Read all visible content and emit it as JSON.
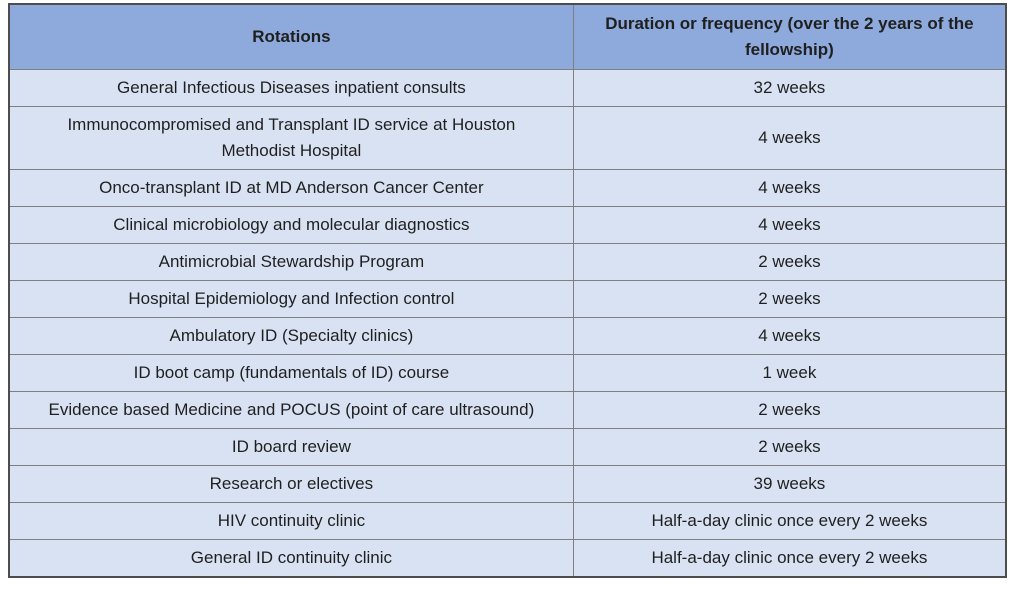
{
  "colors": {
    "header_bg": "#8EAADC",
    "row_bg": "#D9E2F3",
    "border_inner": "#7F7F7F",
    "border_outer": "#4D4D4D",
    "text": "#1F1F1F"
  },
  "table": {
    "columns": [
      {
        "label": "Rotations"
      },
      {
        "label": "Duration or frequency (over the 2 years of the fellowship)"
      }
    ],
    "rows": [
      {
        "rotation": "General Infectious Diseases inpatient consults",
        "duration": "32 weeks"
      },
      {
        "rotation": "Immunocompromised and Transplant ID service at Houston Methodist Hospital",
        "duration": "4 weeks"
      },
      {
        "rotation": "Onco-transplant ID at MD Anderson Cancer Center",
        "duration": "4 weeks"
      },
      {
        "rotation": "Clinical microbiology and molecular diagnostics",
        "duration": "4 weeks"
      },
      {
        "rotation": "Antimicrobial Stewardship Program",
        "duration": "2 weeks"
      },
      {
        "rotation": "Hospital Epidemiology and Infection control",
        "duration": "2 weeks"
      },
      {
        "rotation": "Ambulatory ID (Specialty clinics)",
        "duration": "4 weeks"
      },
      {
        "rotation": "ID boot camp (fundamentals of ID) course",
        "duration": "1 week"
      },
      {
        "rotation": "Evidence based Medicine and POCUS (point of care ultrasound)",
        "duration": "2 weeks"
      },
      {
        "rotation": "ID board review",
        "duration": "2 weeks"
      },
      {
        "rotation": "Research or electives",
        "duration": "39 weeks"
      },
      {
        "rotation": "HIV continuity clinic",
        "duration": "Half-a-day clinic once every 2 weeks"
      },
      {
        "rotation": "General ID continuity clinic",
        "duration": "Half-a-day clinic once every 2 weeks"
      }
    ]
  }
}
